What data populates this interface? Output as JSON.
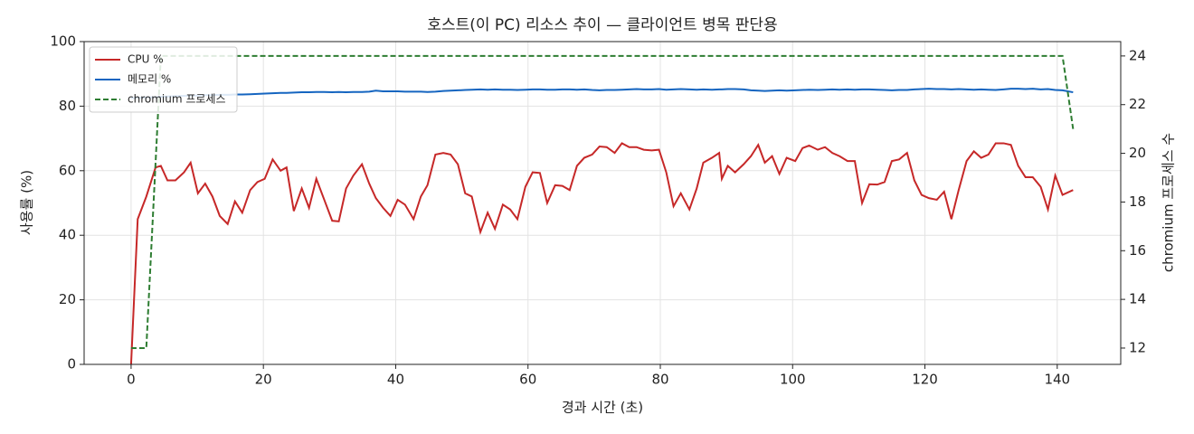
{
  "chart_data": {
    "type": "line",
    "title": "호스트(이 PC) 리소스 추이 — 클라이언트 병목 판단용",
    "xlabel": "경과 시간 (초)",
    "ylabel": "사용률 (%)",
    "y2label": "chromium 프로세스 수",
    "x": [
      0,
      1,
      2.3,
      3.7,
      4.5,
      5.5,
      6.7,
      8,
      9,
      10.1,
      11.2,
      12.3,
      13.4,
      14.6,
      15.7,
      16.8,
      18,
      19.1,
      20.2,
      21.4,
      22.6,
      23.5,
      24.6,
      25.8,
      26.9,
      28,
      29.2,
      30.4,
      31.4,
      32.5,
      33.6,
      34.9,
      36,
      37,
      38.1,
      39.2,
      40.3,
      41.4,
      42.7,
      43.8,
      44.8,
      46,
      47.2,
      48.3,
      49.4,
      50.5,
      51.5,
      52.8,
      53.9,
      55,
      56.2,
      57.3,
      58.4,
      59.6,
      60.7,
      61.8,
      62.9,
      64.1,
      65.2,
      66.3,
      67.4,
      68.5,
      69.7,
      70.8,
      71.9,
      73.1,
      74.2,
      75.3,
      76.4,
      77.5,
      78.7,
      79.8,
      80.9,
      82,
      83.1,
      84.4,
      85.5,
      86.5,
      87.8,
      88.9,
      89.3,
      90.2,
      91.3,
      92.6,
      93.7,
      94.8,
      95.8,
      96.9,
      98,
      99.1,
      100.4,
      101.5,
      102.5,
      103.8,
      104.9,
      106,
      107.1,
      108.3,
      109.4,
      110.5,
      111.6,
      112.8,
      113.9,
      115,
      116.1,
      117.3,
      118.4,
      119.5,
      120.6,
      121.8,
      122.9,
      124,
      125.1,
      126.3,
      127.4,
      128.5,
      129.6,
      130.7,
      131.9,
      133,
      134.1,
      135.2,
      136.3,
      137.5,
      138.6,
      139.7,
      140.8,
      142.4
    ],
    "series": [
      {
        "name": "CPU %",
        "color": "#c62828",
        "linestyle": "solid",
        "axis": "y",
        "values": [
          0,
          45,
          52,
          61,
          61.5,
          57,
          57,
          59.5,
          62.5,
          53,
          56,
          52,
          46,
          43.5,
          50.5,
          47,
          54,
          56.5,
          57.5,
          63.5,
          60,
          61,
          47.5,
          54.5,
          48.5,
          57.5,
          51,
          44.5,
          44.3,
          54.5,
          58.5,
          62,
          56,
          51.5,
          48.5,
          46,
          51,
          49.5,
          45,
          52,
          55.5,
          65,
          65.5,
          65,
          62,
          53,
          52,
          41,
          47,
          42,
          49.5,
          48,
          45,
          55,
          59.5,
          59.3,
          50,
          55.5,
          55.3,
          54,
          61.5,
          64,
          65,
          67.5,
          67.3,
          65.5,
          68.5,
          67.3,
          67.3,
          66.5,
          66.3,
          66.5,
          59.5,
          49,
          53,
          48,
          54.5,
          62.5,
          64,
          65.5,
          57.5,
          61.5,
          59.5,
          62,
          64.5,
          68,
          62.5,
          64.5,
          59,
          64,
          63,
          67,
          67.8,
          66.5,
          67.3,
          65.5,
          64.5,
          63,
          63,
          50,
          55.8,
          55.7,
          56.5,
          63,
          63.5,
          65.5,
          57,
          52.5,
          51.5,
          51,
          53.5,
          45,
          54,
          63,
          66,
          64,
          65,
          68.5,
          68.5,
          68,
          61.5,
          58,
          58,
          55,
          48,
          58.5,
          52.5,
          54
        ]
      },
      {
        "name": "메모리 %",
        "color": "#1565c0",
        "linestyle": "solid",
        "axis": "y",
        "values": [
          82.5,
          82.6,
          82.7,
          82.8,
          82.9,
          83.0,
          83.1,
          83.2,
          83.3,
          83.3,
          83.4,
          83.4,
          83.5,
          83.5,
          83.6,
          83.6,
          83.7,
          83.8,
          83.9,
          84.0,
          84.1,
          84.1,
          84.2,
          84.3,
          84.3,
          84.4,
          84.4,
          84.3,
          84.4,
          84.3,
          84.4,
          84.4,
          84.5,
          84.8,
          84.6,
          84.6,
          84.6,
          84.5,
          84.5,
          84.5,
          84.4,
          84.5,
          84.7,
          84.8,
          84.9,
          85.0,
          85.1,
          85.2,
          85.1,
          85.2,
          85.1,
          85.1,
          85.0,
          85.1,
          85.2,
          85.2,
          85.1,
          85.1,
          85.2,
          85.2,
          85.1,
          85.2,
          85.0,
          84.9,
          85.0,
          85.0,
          85.1,
          85.2,
          85.3,
          85.2,
          85.2,
          85.3,
          85.1,
          85.2,
          85.3,
          85.2,
          85.1,
          85.2,
          85.1,
          85.2,
          85.2,
          85.3,
          85.3,
          85.2,
          84.9,
          84.8,
          84.7,
          84.8,
          84.9,
          84.8,
          84.9,
          85.0,
          85.1,
          85.0,
          85.1,
          85.2,
          85.1,
          85.2,
          85.1,
          85.2,
          85.2,
          85.1,
          85.0,
          84.9,
          85.0,
          85.0,
          85.2,
          85.3,
          85.4,
          85.3,
          85.3,
          85.2,
          85.3,
          85.2,
          85.1,
          85.2,
          85.1,
          85.0,
          85.2,
          85.4,
          85.4,
          85.3,
          85.4,
          85.2,
          85.3,
          85.0,
          84.9,
          84.3
        ]
      },
      {
        "name": "chromium 프로세스",
        "color": "#2e7d32",
        "linestyle": "dashed",
        "axis": "y2",
        "values": [
          12,
          12,
          12,
          19.6,
          24,
          24,
          24,
          24,
          24,
          24,
          24,
          24,
          24,
          24,
          24,
          24,
          24,
          24,
          24,
          24,
          24,
          24,
          24,
          24,
          24,
          24,
          24,
          24,
          24,
          24,
          24,
          24,
          24,
          24,
          24,
          24,
          24,
          24,
          24,
          24,
          24,
          24,
          24,
          24,
          24,
          24,
          24,
          24,
          24,
          24,
          24,
          24,
          24,
          24,
          24,
          24,
          24,
          24,
          24,
          24,
          24,
          24,
          24,
          24,
          24,
          24,
          24,
          24,
          24,
          24,
          24,
          24,
          24,
          24,
          24,
          24,
          24,
          24,
          24,
          24,
          24,
          24,
          24,
          24,
          24,
          24,
          24,
          24,
          24,
          24,
          24,
          24,
          24,
          24,
          24,
          24,
          24,
          24,
          24,
          24,
          24,
          24,
          24,
          24,
          24,
          24,
          24,
          24,
          24,
          24,
          24,
          24,
          24,
          24,
          24,
          24,
          24,
          24,
          24,
          24,
          24,
          24,
          24,
          24,
          24,
          24,
          24,
          21
        ]
      }
    ],
    "xlim": [
      -7.1,
      149.6
    ],
    "xticks": [
      0,
      20,
      40,
      60,
      80,
      100,
      120,
      140
    ],
    "ylim": [
      0,
      100
    ],
    "yticks": [
      0,
      20,
      40,
      60,
      80,
      100
    ],
    "y2lim": [
      11.33,
      24.59
    ],
    "y2ticks": [
      12,
      14,
      16,
      18,
      20,
      22,
      24
    ],
    "grid": true,
    "legend": "upper-left"
  }
}
